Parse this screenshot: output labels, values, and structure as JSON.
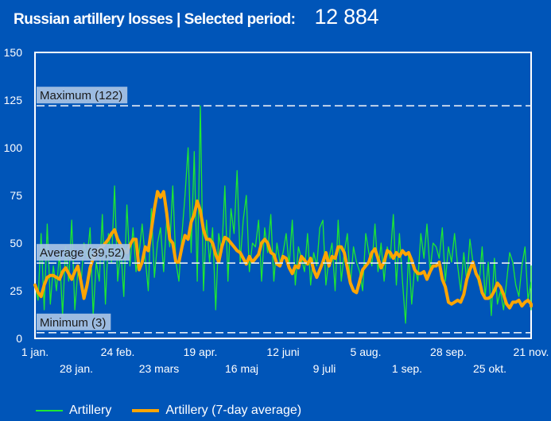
{
  "header": {
    "title": "Russian artillery losses | Selected period:",
    "total": "12 884"
  },
  "colors": {
    "background": "#0055b8",
    "raw_series": "#1ee832",
    "avg_series": "#ffa500",
    "ref_line": "#e6ecf5",
    "ref_label_bg": "#a9c4e4"
  },
  "legend": [
    {
      "label": "Artillery",
      "color": "#1ee832",
      "style": "thin"
    },
    {
      "label": "Artillery (7-day average)",
      "color": "#ffa500",
      "style": "thick"
    }
  ],
  "chart_data": {
    "type": "line",
    "title": "Russian artillery losses",
    "xlabel": "",
    "ylabel": "",
    "ylim": [
      0,
      150
    ],
    "yticks": [
      0,
      25,
      50,
      75,
      100,
      125,
      150
    ],
    "xlim_days": [
      0,
      324
    ],
    "xticks": [
      {
        "day": 0,
        "label": "1 jan.",
        "row": 1
      },
      {
        "day": 27,
        "label": "28 jan.",
        "row": 2
      },
      {
        "day": 54,
        "label": "24 feb.",
        "row": 1
      },
      {
        "day": 81,
        "label": "23 mars",
        "row": 2
      },
      {
        "day": 108,
        "label": "19 apr.",
        "row": 1
      },
      {
        "day": 135,
        "label": "16 maj",
        "row": 2
      },
      {
        "day": 162,
        "label": "12 juni",
        "row": 1
      },
      {
        "day": 189,
        "label": "9 juli",
        "row": 2
      },
      {
        "day": 216,
        "label": "5 aug.",
        "row": 1
      },
      {
        "day": 243,
        "label": "1 sep.",
        "row": 2
      },
      {
        "day": 270,
        "label": "28 sep.",
        "row": 1
      },
      {
        "day": 297,
        "label": "25 okt.",
        "row": 2
      },
      {
        "day": 324,
        "label": "21 nov.",
        "row": 1
      }
    ],
    "grid": false,
    "legend_position": "bottom-left",
    "reference_lines": [
      {
        "name": "maximum",
        "label": "Maximum (122)",
        "value": 122
      },
      {
        "name": "average",
        "label": "Average (39,52)",
        "value": 39.52
      },
      {
        "name": "minimum",
        "label": "Minimum (3)",
        "value": 3
      }
    ],
    "series": [
      {
        "name": "Artillery",
        "step_days": 2,
        "values": [
          28,
          20,
          55,
          15,
          60,
          18,
          38,
          25,
          45,
          12,
          48,
          30,
          62,
          15,
          35,
          28,
          50,
          42,
          58,
          12,
          40,
          30,
          65,
          18,
          55,
          40,
          80,
          30,
          48,
          22,
          70,
          38,
          58,
          35,
          45,
          60,
          42,
          25,
          68,
          32,
          50,
          58,
          35,
          62,
          48,
          80,
          40,
          30,
          55,
          75,
          100,
          45,
          98,
          30,
          122,
          25,
          62,
          40,
          58,
          15,
          55,
          45,
          80,
          30,
          68,
          55,
          88,
          40,
          62,
          75,
          35,
          50,
          48,
          62,
          30,
          58,
          45,
          65,
          30,
          50,
          40,
          45,
          55,
          38,
          62,
          28,
          48,
          42,
          35,
          55,
          28,
          45,
          38,
          58,
          62,
          28,
          42,
          50,
          25,
          62,
          30,
          45,
          55,
          28,
          48,
          40,
          35,
          25,
          55,
          45,
          38,
          60,
          35,
          50,
          30,
          48,
          42,
          65,
          28,
          55,
          30,
          8,
          45,
          18,
          38,
          30,
          55,
          42,
          60,
          35,
          50,
          48,
          42,
          58,
          30,
          48,
          40,
          55,
          38,
          25,
          45,
          30,
          52,
          40,
          35,
          28,
          48,
          22,
          40,
          12,
          42,
          18,
          25,
          15,
          30,
          45,
          40,
          28,
          22,
          38,
          48,
          20,
          30,
          18,
          25,
          15,
          38,
          20
        ],
        "color": "#1ee832"
      },
      {
        "name": "Artillery (7-day average)",
        "step_days": 2,
        "values": [
          28,
          24,
          22,
          28,
          32,
          33,
          33,
          32,
          31,
          35,
          37,
          34,
          31,
          35,
          38,
          30,
          21,
          28,
          37,
          42,
          45,
          47,
          48,
          50,
          52,
          55,
          57,
          52,
          49,
          46,
          45,
          49,
          52,
          52,
          36,
          40,
          48,
          46,
          57,
          68,
          77,
          74,
          77,
          66,
          52,
          50,
          40,
          40,
          48,
          54,
          52,
          61,
          65,
          72,
          67,
          57,
          52,
          52,
          50,
          44,
          40,
          48,
          53,
          52,
          50,
          48,
          46,
          45,
          42,
          39,
          43,
          40,
          42,
          44,
          50,
          52,
          50,
          45,
          44,
          39,
          38,
          43,
          42,
          37,
          34,
          38,
          37,
          43,
          41,
          39,
          42,
          36,
          32,
          36,
          40,
          45,
          38,
          43,
          42,
          48,
          48,
          45,
          37,
          29,
          25,
          24,
          30,
          36,
          38,
          40,
          45,
          47,
          42,
          37,
          40,
          46,
          45,
          42,
          45,
          43,
          46,
          44,
          45,
          41,
          36,
          34,
          34,
          35,
          31,
          35,
          38,
          38,
          40,
          31,
          27,
          19,
          18,
          19,
          20,
          19,
          23,
          31,
          36,
          40,
          34,
          31,
          24,
          21,
          21,
          22,
          25,
          29,
          27,
          23,
          18,
          16,
          19,
          19,
          20,
          17,
          19,
          20,
          18,
          17
        ],
        "color": "#ffa500"
      }
    ]
  }
}
